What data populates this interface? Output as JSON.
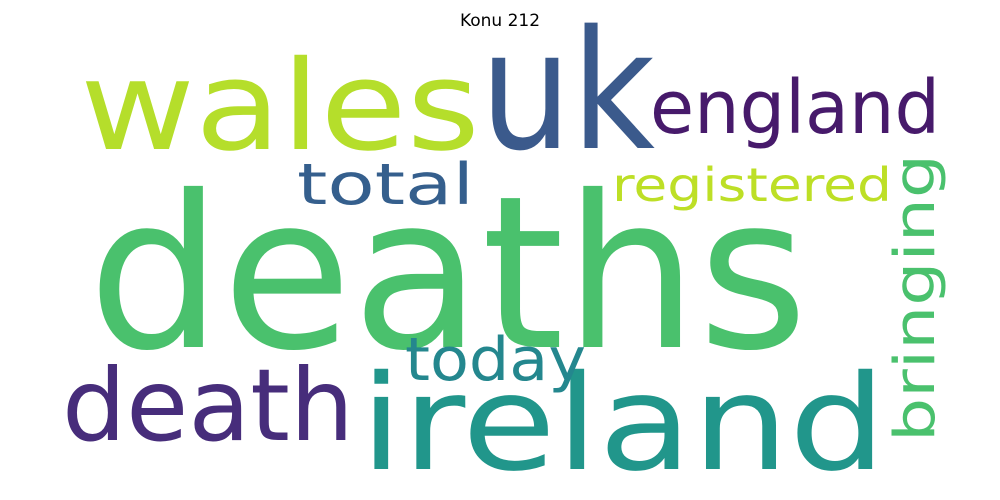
{
  "title": "Konu 212",
  "words": [
    {
      "id": "deaths",
      "text": "deaths",
      "color": "#4ac16d"
    },
    {
      "id": "uk",
      "text": "uk",
      "color": "#3b5a8c"
    },
    {
      "id": "wales",
      "text": "wales",
      "color": "#b5de2b"
    },
    {
      "id": "ireland",
      "text": "ireland",
      "color": "#21968b"
    },
    {
      "id": "death",
      "text": "death",
      "color": "#472d7b"
    },
    {
      "id": "england",
      "text": "england",
      "color": "#471a6b"
    },
    {
      "id": "total",
      "text": "total",
      "color": "#355f8d"
    },
    {
      "id": "registered",
      "text": "registered",
      "color": "#bddf26"
    },
    {
      "id": "today",
      "text": "today",
      "color": "#24878e"
    },
    {
      "id": "bringing",
      "text": "bringing",
      "color": "#4ac16d"
    }
  ]
}
